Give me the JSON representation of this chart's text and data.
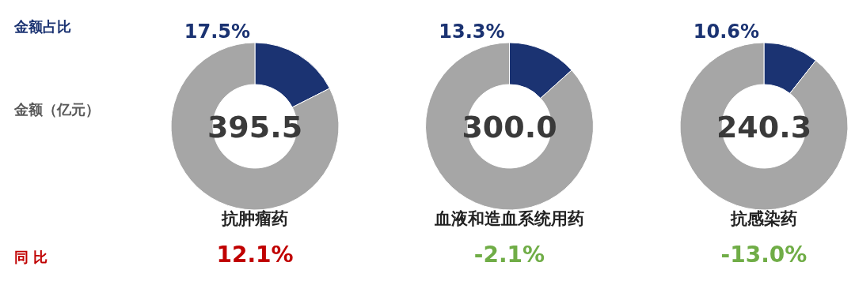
{
  "chart_data": [
    {
      "type": "other",
      "annotations": [
        "金额占比",
        "金额（亿元）",
        "同 比"
      ]
    },
    {
      "type": "donut",
      "title": "抗肿瘤药",
      "categories": [
        null,
        null
      ],
      "values": [
        17.5,
        82.5
      ],
      "colors": [
        "#1b3372",
        "#a6a6a6"
      ],
      "value_labels": [
        "17.5%",
        null
      ],
      "annotations": [
        "395.5",
        "12.1%"
      ]
    },
    {
      "type": "donut",
      "title": "血液和造血系统用药",
      "categories": [
        null,
        null
      ],
      "values": [
        13.3,
        86.7
      ],
      "colors": [
        "#1b3372",
        "#a6a6a6"
      ],
      "value_labels": [
        "13.3%",
        null
      ],
      "annotations": [
        "300.0",
        "-2.1%"
      ]
    },
    {
      "type": "donut",
      "title": "抗感染药",
      "categories": [
        null,
        null
      ],
      "values": [
        10.6,
        89.4
      ],
      "colors": [
        "#1b3372",
        "#a6a6a6"
      ],
      "value_labels": [
        "10.6%",
        null
      ],
      "annotations": [
        "240.3",
        "-13.0%"
      ]
    }
  ]
}
